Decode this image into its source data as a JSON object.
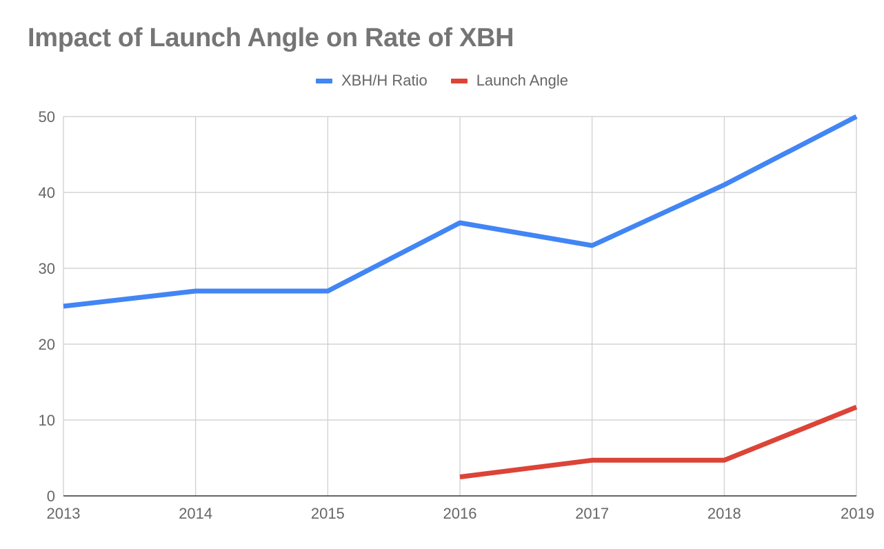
{
  "chart_data": {
    "type": "line",
    "title": "Impact of Launch Angle on Rate of XBH",
    "xlabel": "",
    "ylabel": "",
    "x": [
      "2013",
      "2014",
      "2015",
      "2016",
      "2017",
      "2018",
      "2019"
    ],
    "ylim": [
      0,
      50
    ],
    "yticks": [
      "0",
      "10",
      "20",
      "30",
      "40",
      "50"
    ],
    "grid": true,
    "legend_position": "top-center",
    "series": [
      {
        "name": "XBH/H Ratio",
        "color": "#4285f4",
        "values": [
          25,
          27,
          27,
          36,
          33,
          41,
          50
        ]
      },
      {
        "name": "Launch Angle",
        "color": "#db4437",
        "values": [
          null,
          null,
          null,
          2.5,
          4.7,
          4.7,
          11.7
        ]
      }
    ]
  }
}
